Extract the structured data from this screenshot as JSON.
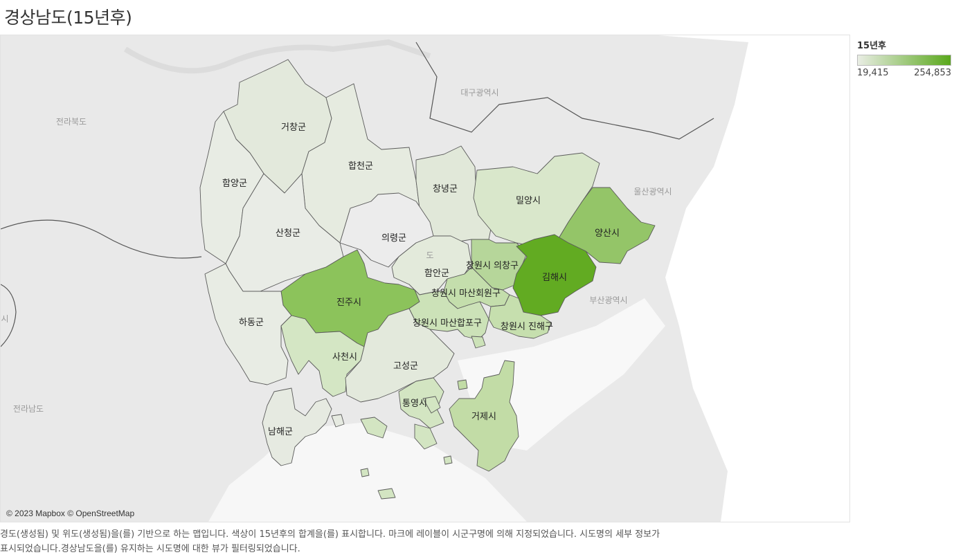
{
  "title": "경상남도(15년후)",
  "legend": {
    "title": "15년후",
    "min_label": "19,415",
    "max_label": "254,853",
    "min_color": "#e9ede4",
    "max_color": "#5aa81c"
  },
  "attribution": "© 2023 Mapbox © OpenStreetMap",
  "caption": {
    "line1": "경도(생성됨) 및 위도(생성됨)을(를) 기반으로 하는 맵입니다. 색상이 15년후의 합계을(를) 표시합니다. 마크에 레이블이 시군구명에 의해 지정되었습니다. 시도명의 세부 정보가",
    "line2": "표시되었습니다.경상남도을(를) 유지하는 시도명에 대한 뷰가 필터링되었습니다."
  },
  "background_labels": {
    "daegu": "대구광역시",
    "jeonbuk": "전라북도",
    "ulsan": "울산광역시",
    "busan": "부산광역시",
    "jeonnam": "전라남도",
    "gyeongnam_faint": "도",
    "edge_cut": "시"
  },
  "regions": {
    "geochang": "거창군",
    "hapcheon": "합천군",
    "hamyang": "함양군",
    "changnyeong": "창녕군",
    "miryang": "밀양시",
    "yangsan": "양산시",
    "sancheong": "산청군",
    "uiryeong": "의령군",
    "haman": "함안군",
    "uichang": "창원시 의창구",
    "gimhae": "김해시",
    "seongsan": "창원시 마산회원구",
    "jinju": "진주시",
    "hadong": "하동군",
    "happo": "창원시 마산합포구",
    "jinhae": "창원시 진해구",
    "sacheon": "사천시",
    "goseong": "고성군",
    "tongyeong": "통영시",
    "geoje": "거제시",
    "namhae": "남해군"
  },
  "region_colors": {
    "geochang": "#e3e9dc",
    "hapcheon": "#e6ebe0",
    "hamyang": "#e8ece4",
    "changnyeong": "#e1e8d9",
    "miryang": "#d9e7cb",
    "yangsan": "#94c568",
    "sancheong": "#e9ece6",
    "uiryeong": "#ececec",
    "haman": "#e3eadb",
    "uichang": "#b6d69a",
    "gimhae": "#62ab22",
    "seongsan": "#c4deac",
    "jinju": "#8cc35b",
    "hadong": "#e8ece4",
    "happo": "#cce2b8",
    "jinhae": "#c6dfae",
    "sacheon": "#d4e6c4",
    "goseong": "#e3e9dc",
    "tongyeong": "#d3e5c2",
    "geoje": "#c2dca6",
    "namhae": "#e6eae1"
  }
}
